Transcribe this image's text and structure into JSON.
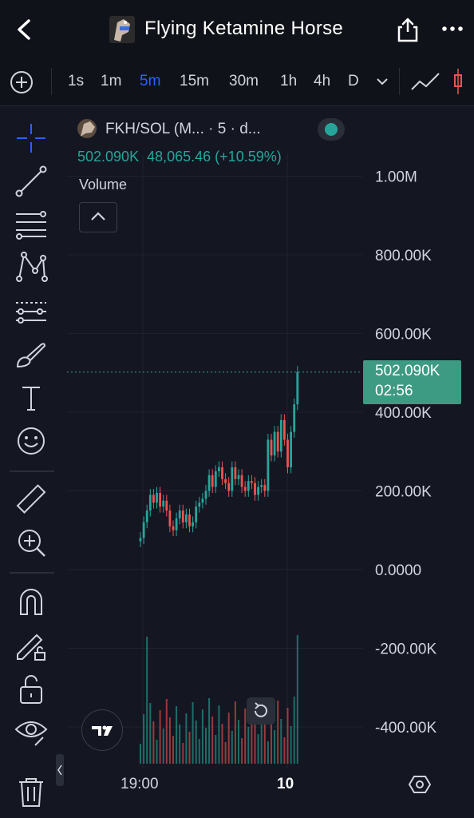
{
  "header": {
    "title": "Flying Ketamine Horse",
    "icons": [
      "back-icon",
      "share-icon",
      "more-icon"
    ]
  },
  "timeframes": {
    "items": [
      "1s",
      "1m",
      "5m",
      "15m",
      "30m",
      "1h",
      "4h",
      "D"
    ],
    "active": "5m"
  },
  "legend": {
    "title": "FKH/SOL (M... · 5 · d...",
    "value": "502.090K",
    "change": "48,065.46 (+10.59%)",
    "status_color": "#26a69a"
  },
  "volume": {
    "label": "Volume"
  },
  "price_tag": {
    "value": "502.090K",
    "countdown": "02:56"
  },
  "axis": {
    "y_labels": [
      "1.00M",
      "800.00K",
      "600.00K",
      "400.00K",
      "200.00K",
      "0.0000",
      "-200.00K",
      "-400.00K"
    ],
    "x_labels": [
      "19:00",
      "10"
    ]
  },
  "colors": {
    "up": "#26a69a",
    "down": "#ef5350",
    "accent": "#2962ff",
    "background": "#141722"
  },
  "chart_data": {
    "type": "candlestick",
    "y_ticks": [
      1000000,
      800000,
      600000,
      400000,
      200000,
      0,
      -200000,
      -400000
    ],
    "ylim": [
      -450000,
      1050000
    ],
    "last_price": 502090,
    "closes": [
      80000,
      120000,
      150000,
      190000,
      170000,
      195000,
      160000,
      175000,
      150000,
      110000,
      100000,
      130000,
      150000,
      120000,
      140000,
      110000,
      120000,
      160000,
      170000,
      180000,
      200000,
      240000,
      210000,
      250000,
      260000,
      230000,
      220000,
      200000,
      260000,
      230000,
      240000,
      210000,
      200000,
      225000,
      220000,
      190000,
      210000,
      215000,
      200000,
      330000,
      290000,
      350000,
      300000,
      380000,
      330000,
      260000,
      350000,
      420000,
      502090
    ]
  }
}
